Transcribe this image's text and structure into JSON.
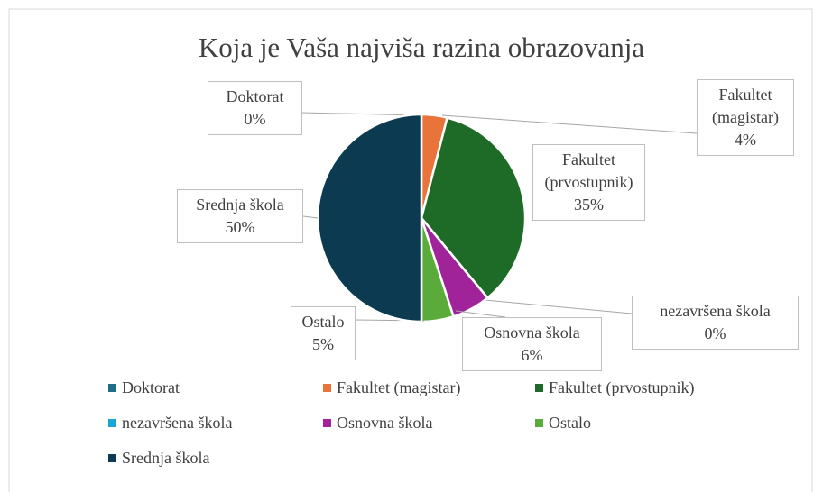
{
  "chart_data": {
    "type": "pie",
    "title": "Koja je Vaša najviša razina obrazovanja",
    "categories": [
      "Doktorat",
      "Fakultet (magistar)",
      "Fakultet (prvostupnik)",
      "nezavršena škola",
      "Osnovna škola",
      "Ostalo",
      "Srednja škola"
    ],
    "values": [
      0,
      4,
      35,
      0,
      6,
      5,
      50
    ],
    "value_labels": [
      "0%",
      "4%",
      "35%",
      "0%",
      "6%",
      "5%",
      "50%"
    ],
    "colors": [
      "#1f6b8c",
      "#e8743b",
      "#1e6b27",
      "#1aa6d4",
      "#a1239a",
      "#5aab3a",
      "#0c3a50"
    ],
    "legend": "bottom"
  }
}
